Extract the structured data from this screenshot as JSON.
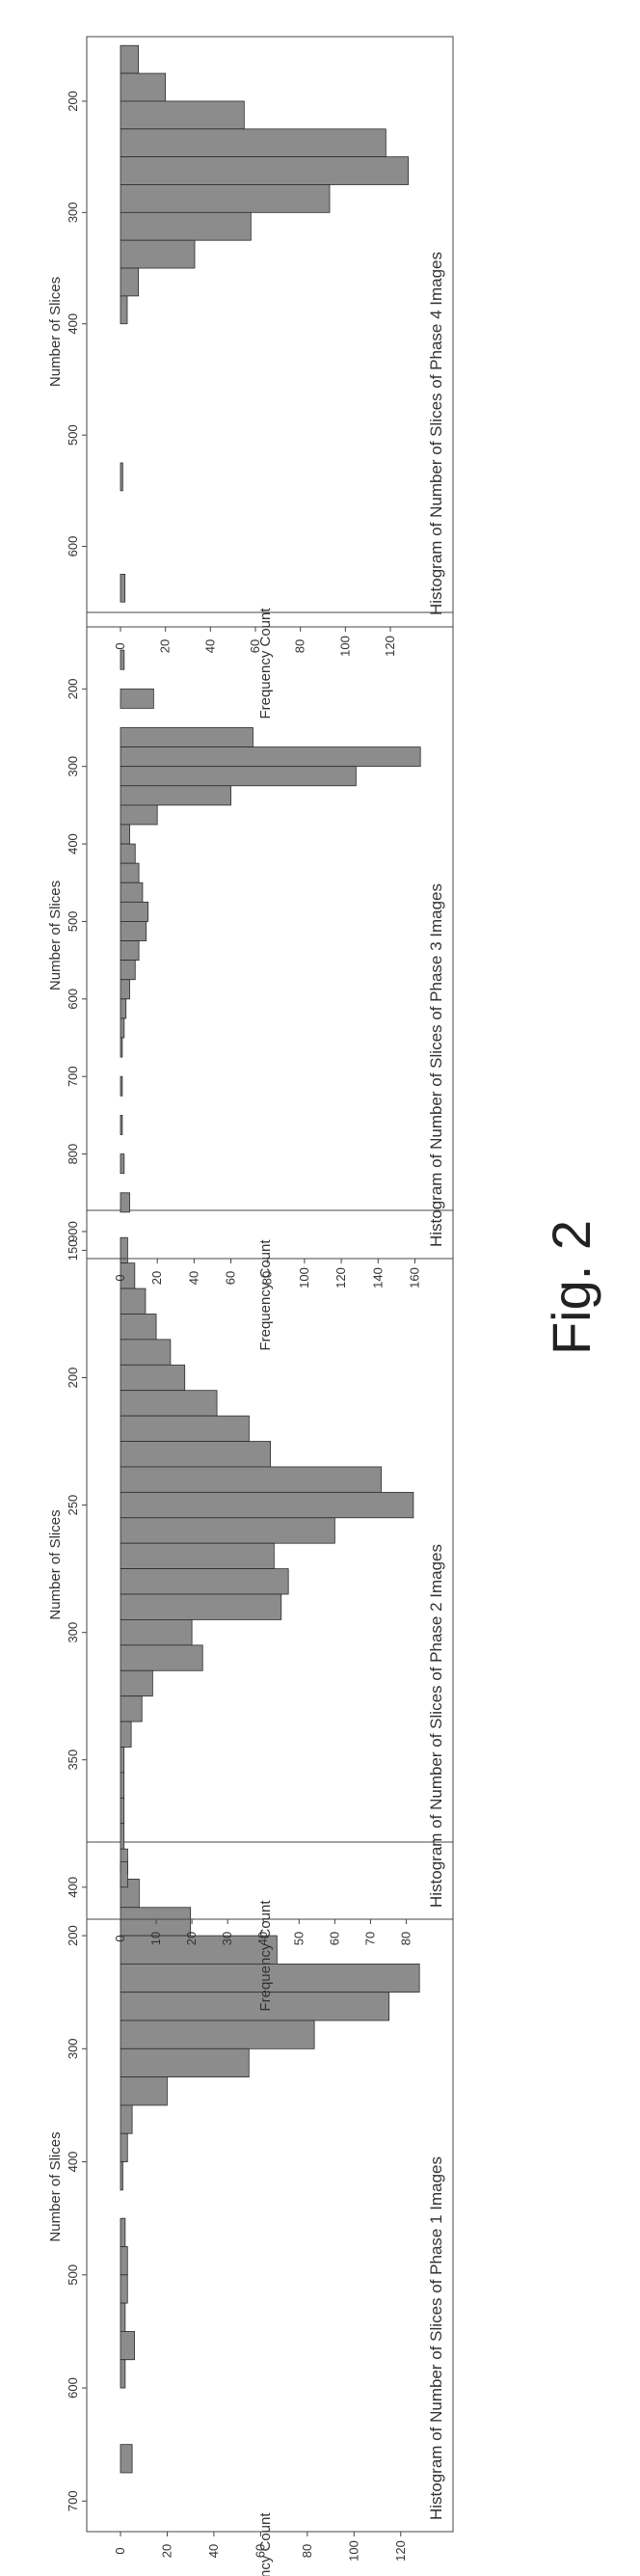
{
  "figure": {
    "label": "Fig. 2"
  },
  "chart_data": [
    {
      "type": "bar",
      "title": "Histogram of Number of Slices of Phase 1 Images",
      "xlabel": "Number of Slices",
      "ylabel": "Frequency Count",
      "xlim": [
        130,
        710
      ],
      "ylim": [
        0,
        130
      ],
      "xticks": [
        200,
        300,
        400,
        500,
        600,
        700
      ],
      "yticks": [
        0,
        20,
        40,
        60,
        80,
        100,
        120
      ],
      "bin_width": 25,
      "bins": [
        {
          "x": 162.5,
          "y": 8
        },
        {
          "x": 187.5,
          "y": 30
        },
        {
          "x": 212.5,
          "y": 67
        },
        {
          "x": 237.5,
          "y": 128
        },
        {
          "x": 262.5,
          "y": 115
        },
        {
          "x": 287.5,
          "y": 83
        },
        {
          "x": 312.5,
          "y": 55
        },
        {
          "x": 337.5,
          "y": 20
        },
        {
          "x": 362.5,
          "y": 5
        },
        {
          "x": 387.5,
          "y": 3
        },
        {
          "x": 412.5,
          "y": 1
        },
        {
          "x": 462.5,
          "y": 2
        },
        {
          "x": 487.5,
          "y": 3
        },
        {
          "x": 512.5,
          "y": 3
        },
        {
          "x": 537.5,
          "y": 2
        },
        {
          "x": 562.5,
          "y": 6
        },
        {
          "x": 587.5,
          "y": 2
        },
        {
          "x": 662.5,
          "y": 5
        }
      ],
      "grid": false
    },
    {
      "type": "bar",
      "title": "Histogram of Number of Slices of Phase 2 Images",
      "xlabel": "Number of Slices",
      "ylabel": "Frequency Count",
      "xlim": [
        140,
        405
      ],
      "ylim": [
        0,
        85
      ],
      "xticks": [
        150,
        200,
        250,
        300,
        350,
        400
      ],
      "yticks": [
        0,
        10,
        20,
        30,
        40,
        50,
        60,
        70,
        80
      ],
      "bin_width": 10,
      "bins": [
        {
          "x": 150,
          "y": 2
        },
        {
          "x": 160,
          "y": 4
        },
        {
          "x": 170,
          "y": 7
        },
        {
          "x": 180,
          "y": 10
        },
        {
          "x": 190,
          "y": 14
        },
        {
          "x": 200,
          "y": 18
        },
        {
          "x": 210,
          "y": 27
        },
        {
          "x": 220,
          "y": 36
        },
        {
          "x": 230,
          "y": 42
        },
        {
          "x": 240,
          "y": 73
        },
        {
          "x": 250,
          "y": 82
        },
        {
          "x": 260,
          "y": 60
        },
        {
          "x": 270,
          "y": 43
        },
        {
          "x": 280,
          "y": 47
        },
        {
          "x": 290,
          "y": 45
        },
        {
          "x": 300,
          "y": 20
        },
        {
          "x": 310,
          "y": 23
        },
        {
          "x": 320,
          "y": 9
        },
        {
          "x": 330,
          "y": 6
        },
        {
          "x": 340,
          "y": 3
        },
        {
          "x": 350,
          "y": 1
        },
        {
          "x": 360,
          "y": 1
        },
        {
          "x": 370,
          "y": 1
        },
        {
          "x": 380,
          "y": 1
        },
        {
          "x": 390,
          "y": 2
        },
        {
          "x": 395,
          "y": 2
        }
      ],
      "grid": false
    },
    {
      "type": "bar",
      "title": "Histogram of Number of Slices of Phase 3 Images",
      "xlabel": "Number of Slices",
      "ylabel": "Frequency Count",
      "xlim": [
        120,
        910
      ],
      "ylim": [
        0,
        165
      ],
      "xticks": [
        200,
        300,
        400,
        500,
        600,
        700,
        800,
        900
      ],
      "yticks": [
        0,
        20,
        40,
        60,
        80,
        100,
        120,
        140,
        160
      ],
      "bin_width": 25,
      "bins": [
        {
          "x": 162.5,
          "y": 2
        },
        {
          "x": 212.5,
          "y": 18
        },
        {
          "x": 262.5,
          "y": 72
        },
        {
          "x": 287.5,
          "y": 163
        },
        {
          "x": 312.5,
          "y": 128
        },
        {
          "x": 337.5,
          "y": 60
        },
        {
          "x": 362.5,
          "y": 20
        },
        {
          "x": 387.5,
          "y": 5
        },
        {
          "x": 412.5,
          "y": 8
        },
        {
          "x": 437.5,
          "y": 10
        },
        {
          "x": 462.5,
          "y": 12
        },
        {
          "x": 487.5,
          "y": 15
        },
        {
          "x": 512.5,
          "y": 14
        },
        {
          "x": 537.5,
          "y": 10
        },
        {
          "x": 562.5,
          "y": 8
        },
        {
          "x": 587.5,
          "y": 5
        },
        {
          "x": 612.5,
          "y": 3
        },
        {
          "x": 637.5,
          "y": 2
        },
        {
          "x": 662.5,
          "y": 1
        },
        {
          "x": 712.5,
          "y": 1
        },
        {
          "x": 762.5,
          "y": 1
        },
        {
          "x": 812.5,
          "y": 2
        },
        {
          "x": 862.5,
          "y": 5
        }
      ],
      "grid": false
    },
    {
      "type": "bar",
      "title": "Histogram of Number of Slices of Phase 4 Images",
      "xlabel": "Number of Slices",
      "ylabel": "Frequency Count",
      "xlim": [
        155,
        655
      ],
      "ylim": [
        0,
        135
      ],
      "xticks": [
        200,
        300,
        400,
        500,
        600
      ],
      "yticks": [
        0,
        20,
        40,
        60,
        80,
        100,
        120
      ],
      "bin_width": 25,
      "bins": [
        {
          "x": 162.5,
          "y": 8
        },
        {
          "x": 187.5,
          "y": 20
        },
        {
          "x": 212.5,
          "y": 55
        },
        {
          "x": 237.5,
          "y": 118
        },
        {
          "x": 262.5,
          "y": 128
        },
        {
          "x": 287.5,
          "y": 93
        },
        {
          "x": 312.5,
          "y": 58
        },
        {
          "x": 337.5,
          "y": 33
        },
        {
          "x": 362.5,
          "y": 8
        },
        {
          "x": 387.5,
          "y": 3
        },
        {
          "x": 537.5,
          "y": 1
        },
        {
          "x": 637.5,
          "y": 2
        }
      ],
      "grid": false
    }
  ],
  "style": {
    "bar_fill": "#8c8c8c",
    "bar_stroke": "#2b2b2b",
    "axis_color": "#444444",
    "text_color": "#333333"
  }
}
